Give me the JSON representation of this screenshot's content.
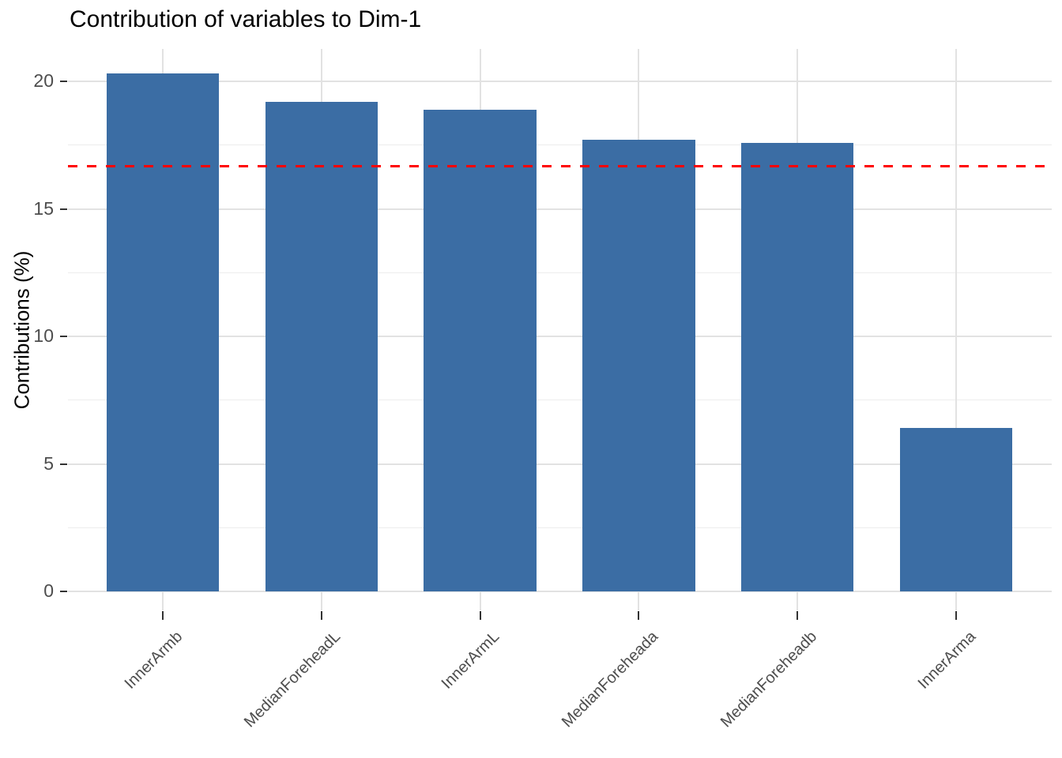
{
  "chart_data": {
    "type": "bar",
    "title": "Contribution of variables to Dim-1",
    "xlabel": "",
    "ylabel": "Contributions (%)",
    "categories": [
      "InnerArmb",
      "MedianForeheadL",
      "InnerArmL",
      "MedianForeheada",
      "MedianForeheadb",
      "InnerArma"
    ],
    "values": [
      20.3,
      19.2,
      18.9,
      17.7,
      17.6,
      6.4
    ],
    "yticks": [
      0,
      5,
      10,
      15,
      20
    ],
    "minor_yticks": [
      2.5,
      7.5,
      12.5,
      17.5
    ],
    "ylim": [
      -0.74,
      21.27
    ],
    "reference_line": {
      "value": 16.67,
      "color": "#ff0000",
      "style": "dashed"
    },
    "bar_color": "#3b6da4",
    "grid": true,
    "legend": "none",
    "x_tick_rotation": 45
  }
}
